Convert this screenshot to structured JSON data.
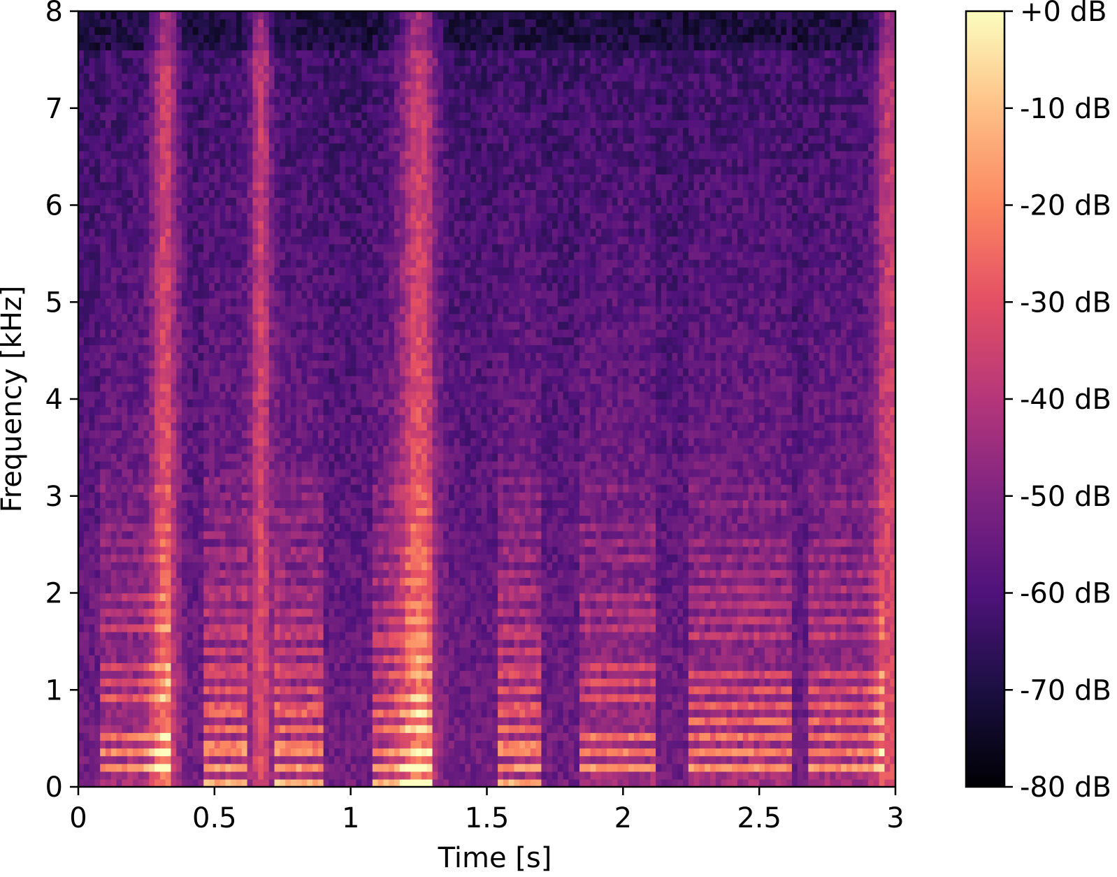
{
  "chart_data": {
    "type": "heatmap",
    "title": "",
    "xlabel": "Time [s]",
    "ylabel": "Frequency [kHz]",
    "xlim": [
      0,
      3
    ],
    "ylim": [
      0,
      8
    ],
    "x_ticks": [
      0,
      0.5,
      1,
      1.5,
      2,
      2.5,
      3
    ],
    "x_tick_labels": [
      "0",
      "0.5",
      "1",
      "1.5",
      "2",
      "2.5",
      "3"
    ],
    "y_ticks": [
      0,
      1,
      2,
      3,
      4,
      5,
      6,
      7,
      8
    ],
    "y_tick_labels": [
      "0",
      "1",
      "2",
      "3",
      "4",
      "5",
      "6",
      "7",
      "8"
    ],
    "colormap": "magma",
    "colorbar": {
      "range": [
        -80,
        0
      ],
      "ticks": [
        0,
        -10,
        -20,
        -30,
        -40,
        -50,
        -60,
        -70,
        -80
      ],
      "tick_labels": [
        "+0 dB",
        "-10 dB",
        "-20 dB",
        "-30 dB",
        "-40 dB",
        "-50 dB",
        "-60 dB",
        "-70 dB",
        "-80 dB"
      ]
    },
    "grid": false
  }
}
